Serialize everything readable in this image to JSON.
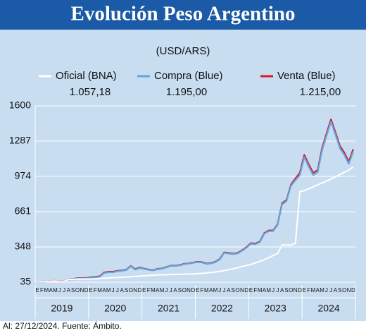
{
  "chart_data": {
    "type": "line",
    "title": "Evolución Peso Argentino",
    "subtitle": "(USD/ARS)",
    "source": "Al: 27/12/2024. Fuente: Ámbito.",
    "categories": [
      "E",
      "F",
      "M",
      "A",
      "M",
      "J",
      "J",
      "A",
      "S",
      "O",
      "N",
      "D",
      "E",
      "F",
      "M",
      "A",
      "M",
      "J",
      "J",
      "A",
      "S",
      "O",
      "N",
      "D",
      "E",
      "F",
      "M",
      "A",
      "M",
      "J",
      "J",
      "A",
      "S",
      "O",
      "N",
      "D",
      "E",
      "F",
      "M",
      "A",
      "M",
      "J",
      "J",
      "A",
      "S",
      "O",
      "N",
      "D",
      "E",
      "F",
      "M",
      "A",
      "M",
      "J",
      "J",
      "A",
      "S",
      "O",
      "N",
      "D",
      "E",
      "F",
      "M",
      "A",
      "M",
      "J",
      "J",
      "A",
      "S",
      "O",
      "N",
      "D"
    ],
    "years": [
      "2019",
      "2020",
      "2021",
      "2022",
      "2023",
      "2024"
    ],
    "ylim": [
      35,
      1600
    ],
    "yticks": [
      35,
      348,
      661,
      974,
      1287,
      1600
    ],
    "grid": true,
    "series": [
      {
        "name": "Oficial (BNA)",
        "color": "#ffffff",
        "values": [
          38.6,
          39.2,
          43.4,
          44.8,
          46.2,
          44.5,
          43.9,
          59.6,
          59.0,
          63.5,
          63.0,
          63.0,
          63.2,
          65.1,
          67.9,
          70.5,
          72.7,
          74.9,
          76.8,
          78.8,
          80.3,
          83.2,
          86.0,
          89.0,
          92.2,
          94.3,
          97.2,
          99.0,
          100.6,
          101.7,
          103.0,
          103.8,
          104.5,
          105.9,
          106.7,
          108.0,
          110.9,
          113.8,
          116.6,
          121.3,
          124.9,
          131.0,
          137.2,
          146.5,
          153.4,
          163.0,
          173.5,
          183.2,
          192.4,
          206.3,
          220.2,
          234.8,
          252.5,
          272.2,
          290.0,
          365.5,
          365.5,
          365.5,
          380.0,
          838.5,
          847.0,
          864.0,
          881.0,
          898.0,
          915.5,
          932.0,
          951.0,
          970.0,
          990.0,
          1009.0,
          1030.0,
          1057.18
        ],
        "value_labels": [
          null,
          null,
          null,
          null,
          null,
          null,
          null,
          null,
          null,
          null,
          null,
          null,
          null,
          null,
          null,
          null,
          null,
          null,
          null,
          null,
          null,
          null,
          null,
          null,
          null,
          null,
          null,
          null,
          null,
          null,
          null,
          null,
          null,
          null,
          null,
          null,
          null,
          null,
          null,
          null,
          null,
          null,
          null,
          null,
          null,
          null,
          null,
          null,
          null,
          null,
          null,
          null,
          null,
          null,
          null,
          null,
          null,
          null,
          null,
          null,
          null,
          null,
          null,
          null,
          null,
          null,
          null,
          null,
          null,
          null,
          null,
          "1.057,18"
        ]
      },
      {
        "name": "Compra (Blue)",
        "color": "#5ea8e0",
        "values": [
          37.5,
          38.5,
          42.0,
          44.5,
          45.5,
          43.0,
          43.0,
          58.0,
          58.5,
          68.0,
          68.0,
          69.0,
          76,
          79,
          83,
          117,
          123,
          123,
          132,
          136,
          143,
          176,
          146,
          161,
          153,
          144,
          139,
          150,
          154,
          167,
          180,
          179,
          184,
          195,
          199,
          206,
          213,
          209,
          197,
          201,
          212,
          237,
          296,
          289,
          284,
          290,
          313,
          341,
          376,
          372,
          390,
          465,
          487,
          489,
          544,
          725,
          755,
          890,
          940,
          985,
          1145,
          1060,
          985,
          1010,
          1205,
          1335,
          1460,
          1345,
          1225,
          1165,
          1085,
          1195.0
        ],
        "value_labels": [
          null,
          null,
          null,
          null,
          null,
          null,
          null,
          null,
          null,
          null,
          null,
          null,
          null,
          null,
          null,
          null,
          null,
          null,
          null,
          null,
          null,
          null,
          null,
          null,
          null,
          null,
          null,
          null,
          null,
          null,
          null,
          null,
          null,
          null,
          null,
          null,
          null,
          null,
          null,
          null,
          null,
          null,
          null,
          null,
          null,
          null,
          null,
          null,
          null,
          null,
          null,
          null,
          null,
          null,
          null,
          null,
          null,
          null,
          null,
          null,
          null,
          null,
          null,
          null,
          null,
          null,
          null,
          null,
          null,
          null,
          null,
          "1.195,00"
        ]
      },
      {
        "name": "Venta (Blue)",
        "color": "#d7192a",
        "values": [
          39.5,
          40.5,
          44.0,
          46.5,
          47.5,
          45.0,
          45.0,
          61.0,
          61.5,
          72.0,
          72.0,
          73.0,
          80,
          83,
          88,
          122,
          128,
          128,
          136,
          140,
          147,
          180,
          151,
          166,
          156,
          147,
          142,
          153,
          157,
          170,
          183,
          182,
          187,
          198,
          202,
          209,
          217,
          213,
          201,
          205,
          216,
          241,
          300,
          294,
          289,
          295,
          318,
          346,
          382,
          378,
          396,
          471,
          494,
          495,
          550,
          735,
          765,
          900,
          955,
          1005,
          1165,
          1080,
          1005,
          1030,
          1225,
          1355,
          1480,
          1365,
          1245,
          1185,
          1105,
          1215.0
        ],
        "value_labels": [
          null,
          null,
          null,
          null,
          null,
          null,
          null,
          null,
          null,
          null,
          null,
          null,
          null,
          null,
          null,
          null,
          null,
          null,
          null,
          null,
          null,
          null,
          null,
          null,
          null,
          null,
          null,
          null,
          null,
          null,
          null,
          null,
          null,
          null,
          null,
          null,
          null,
          null,
          null,
          null,
          null,
          null,
          null,
          null,
          null,
          null,
          null,
          null,
          null,
          null,
          null,
          null,
          null,
          null,
          null,
          null,
          null,
          null,
          null,
          null,
          null,
          null,
          null,
          null,
          null,
          null,
          null,
          null,
          null,
          null,
          null,
          "1.215,00"
        ]
      }
    ]
  }
}
